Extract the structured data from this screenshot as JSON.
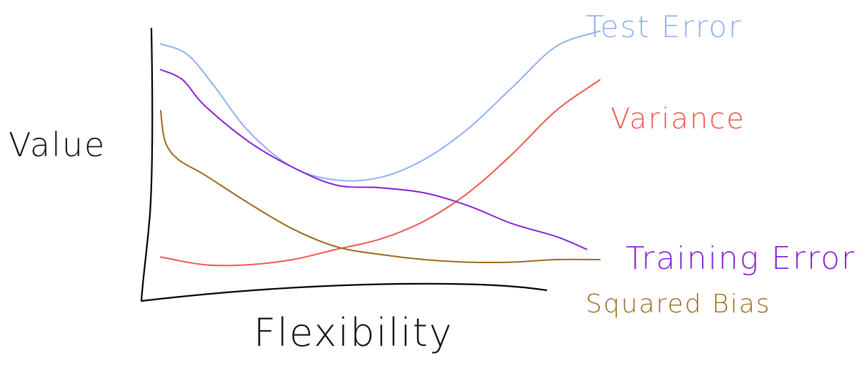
{
  "chart_data": {
    "type": "line",
    "title": "",
    "xlabel": "Flexibility",
    "ylabel": "Value",
    "grid": false,
    "legend": "none",
    "xlim": [
      0,
      10
    ],
    "ylim": [
      0,
      10
    ],
    "series": [
      {
        "name": "Test Error",
        "color": "#8fb1f0",
        "x": [
          0.0,
          0.6,
          1.2,
          2.0,
          3.0,
          4.0,
          5.0,
          6.0,
          7.0,
          8.0,
          9.0,
          10.0
        ],
        "y": [
          9.4,
          9.0,
          7.8,
          6.0,
          4.6,
          4.1,
          4.2,
          4.9,
          6.1,
          7.7,
          9.3,
          9.9
        ]
      },
      {
        "name": "Variance",
        "color": "#f2554e",
        "x": [
          0.0,
          1.0,
          2.0,
          3.0,
          4.0,
          5.0,
          6.0,
          7.0,
          8.0,
          9.0,
          10.0
        ],
        "y": [
          1.1,
          0.8,
          0.8,
          1.0,
          1.4,
          1.8,
          2.5,
          3.6,
          5.1,
          6.8,
          8.0
        ]
      },
      {
        "name": "Training Error",
        "color": "#8a1fd3",
        "x": [
          0.0,
          0.5,
          1.0,
          2.0,
          3.0,
          4.0,
          5.0,
          6.0,
          7.0,
          8.0,
          9.0,
          9.7
        ],
        "y": [
          8.4,
          8.0,
          7.0,
          5.6,
          4.6,
          3.9,
          3.8,
          3.6,
          3.1,
          2.4,
          1.9,
          1.4
        ]
      },
      {
        "name": "Squared Bias",
        "color": "#9a6a18",
        "x": [
          0.0,
          0.1,
          0.4,
          1.0,
          2.0,
          3.0,
          4.0,
          5.0,
          6.0,
          7.0,
          8.0,
          9.0,
          10.0
        ],
        "y": [
          6.8,
          5.6,
          4.9,
          4.3,
          3.2,
          2.2,
          1.5,
          1.2,
          1.0,
          0.9,
          0.9,
          1.0,
          1.0
        ]
      }
    ]
  }
}
